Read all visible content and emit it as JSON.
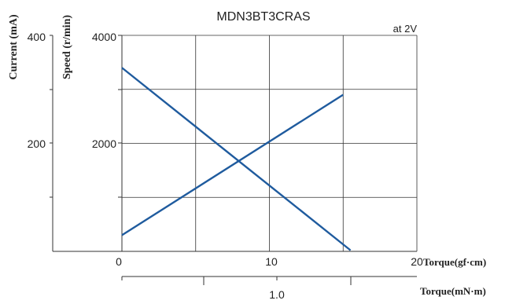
{
  "chart_data": {
    "type": "line",
    "title": "MDN3BT3CRAS",
    "annotation": "at 2V",
    "x_axis": {
      "label": "Torque(gf·cm)",
      "range": [
        0,
        20
      ],
      "ticks": [
        "0",
        "10",
        "20"
      ]
    },
    "x2_axis": {
      "label": "Torque(mN·m)",
      "ticks": [
        "1.0"
      ]
    },
    "y_speed": {
      "label": "Speed (r/min)",
      "range": [
        0,
        4000
      ],
      "ticks": [
        "2000",
        "4000"
      ]
    },
    "y_current": {
      "label": "Current (mA)",
      "range": [
        0,
        400
      ],
      "ticks": [
        "200",
        "400"
      ]
    },
    "grid": true,
    "line_color": "#1f5b9e",
    "series": [
      {
        "key": "speed",
        "axis": "y_speed",
        "x": [
          0,
          15.5
        ],
        "y": [
          3400,
          20
        ]
      },
      {
        "key": "current",
        "axis": "y_current",
        "x": [
          0,
          15
        ],
        "y": [
          30,
          290
        ]
      }
    ]
  }
}
